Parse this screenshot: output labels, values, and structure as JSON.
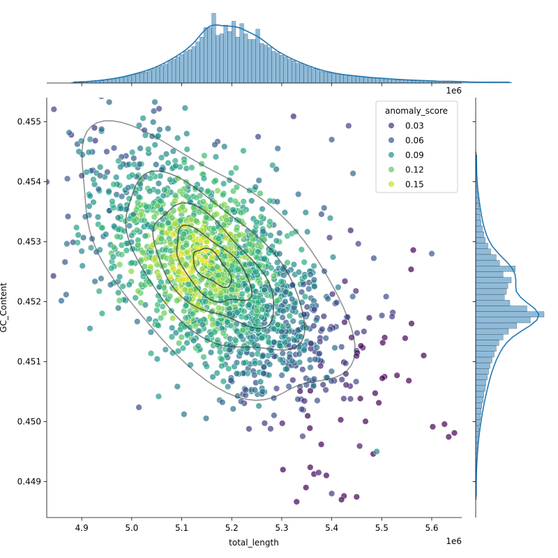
{
  "chart_data": {
    "type": "scatter",
    "subtype": "jointplot",
    "xlabel": "total_length",
    "ylabel": "GC_Content",
    "x_offset_label": "1e6",
    "x_multiplier": 1000000,
    "xlim": [
      4.83,
      5.66
    ],
    "ylim": [
      0.4484,
      0.4554
    ],
    "x_ticks": [
      4.9,
      5.0,
      5.1,
      5.2,
      5.3,
      5.4,
      5.5,
      5.6
    ],
    "x_tick_labels": [
      "4.9",
      "5.0",
      "5.1",
      "5.2",
      "5.3",
      "5.4",
      "5.5",
      "5.6"
    ],
    "y_ticks": [
      0.449,
      0.45,
      0.451,
      0.452,
      0.453,
      0.454,
      0.455
    ],
    "y_tick_labels": [
      "0.449",
      "0.450",
      "0.451",
      "0.452",
      "0.453",
      "0.454",
      "0.455"
    ],
    "legend": {
      "title": "anomaly_score",
      "placement": "top-right",
      "entries": [
        {
          "label": "0.03",
          "color": "#472d7b"
        },
        {
          "label": "0.06",
          "color": "#3b528b"
        },
        {
          "label": "0.09",
          "color": "#21918c"
        },
        {
          "label": "0.12",
          "color": "#5ec962"
        },
        {
          "label": "0.15",
          "color": "#c8e020"
        }
      ]
    },
    "colormap": "viridis",
    "point_alpha": 0.7,
    "marginal_color": "#1f77b4",
    "kde_contour_color": "#3a3a3a",
    "density_model": {
      "mean": [
        5.175,
        0.45245
      ],
      "sd": [
        0.115,
        0.00095
      ],
      "correlation": -0.6
    },
    "sample_points": [
      {
        "x": 4.95,
        "y": 0.4545,
        "score": 0.04
      },
      {
        "x": 5.06,
        "y": 0.4542,
        "score": 0.07
      },
      {
        "x": 5.15,
        "y": 0.453,
        "score": 0.15
      },
      {
        "x": 5.1,
        "y": 0.4527,
        "score": 0.14
      },
      {
        "x": 5.2,
        "y": 0.4522,
        "score": 0.1
      },
      {
        "x": 5.3,
        "y": 0.4515,
        "score": 0.06
      },
      {
        "x": 5.4,
        "y": 0.4488,
        "score": 0.03
      },
      {
        "x": 5.49,
        "y": 0.4495,
        "score": 0.08
      },
      {
        "x": 5.6,
        "y": 0.4528,
        "score": 0.05
      },
      {
        "x": 5.4,
        "y": 0.4547,
        "score": 0.05
      },
      {
        "x": 5.11,
        "y": 0.4548,
        "score": 0.08
      },
      {
        "x": 4.9,
        "y": 0.4541,
        "score": 0.04
      }
    ],
    "x_hist_bins": {
      "start": 4.88,
      "width": 0.008,
      "counts": [
        1,
        1,
        1,
        2,
        2,
        2,
        3,
        3,
        4,
        5,
        5,
        6,
        7,
        8,
        9,
        11,
        12,
        13,
        14,
        16,
        18,
        20,
        22,
        24,
        28,
        30,
        33,
        36,
        40,
        42,
        46,
        52,
        58,
        70,
        70,
        88,
        60,
        62,
        73,
        65,
        78,
        58,
        75,
        62,
        55,
        55,
        68,
        50,
        48,
        45,
        40,
        38,
        35,
        33,
        30,
        28,
        25,
        24,
        22,
        20,
        18,
        17,
        15,
        14,
        13,
        12,
        11,
        10,
        10,
        9,
        9,
        8,
        8,
        7,
        7,
        6,
        6,
        6,
        5,
        5,
        5,
        4,
        4,
        4,
        4,
        3,
        3,
        3,
        3,
        3,
        2,
        2,
        2,
        2,
        2,
        2,
        2,
        2,
        1,
        1,
        1,
        1,
        1,
        1,
        1,
        1,
        1,
        1,
        1,
        1
      ]
    },
    "y_hist_bins": {
      "start": 0.4487,
      "width": 9.5e-05,
      "counts": [
        1,
        0,
        1,
        0,
        1,
        1,
        1,
        2,
        2,
        3,
        3,
        4,
        5,
        6,
        7,
        8,
        9,
        11,
        12,
        14,
        15,
        17,
        19,
        21,
        24,
        27,
        30,
        34,
        40,
        48,
        60,
        80,
        100,
        75,
        50,
        42,
        45,
        47,
        52,
        40,
        58,
        35,
        30,
        22,
        18,
        14,
        12,
        10,
        8,
        7,
        6,
        5,
        4,
        3,
        2,
        2,
        1,
        1,
        1,
        1,
        1
      ]
    }
  }
}
